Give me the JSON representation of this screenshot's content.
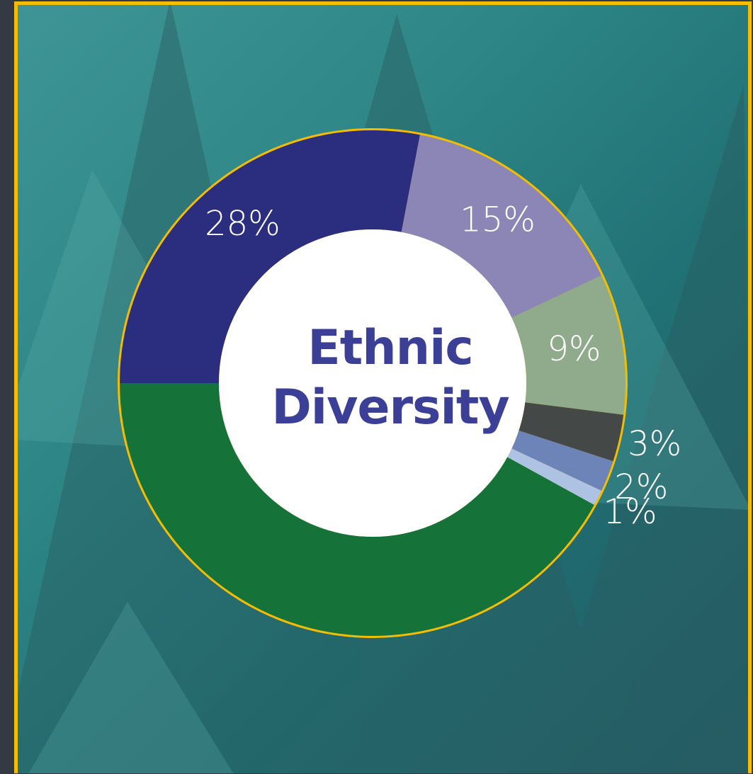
{
  "chart_data": {
    "type": "donut",
    "title": "Ethnic Diversity",
    "values": [
      28,
      15,
      9,
      3,
      2,
      1,
      42
    ],
    "value_labels": [
      "28%",
      "15%",
      "9%",
      "3%",
      "2%",
      "1%",
      null
    ],
    "colors": [
      "#2b2d7e",
      "#8b86b6",
      "#8fab8c",
      "#444846",
      "#6d84b8",
      "#aec3e3",
      "#15733a"
    ],
    "start_angle": 270,
    "direction": "clockwise"
  }
}
